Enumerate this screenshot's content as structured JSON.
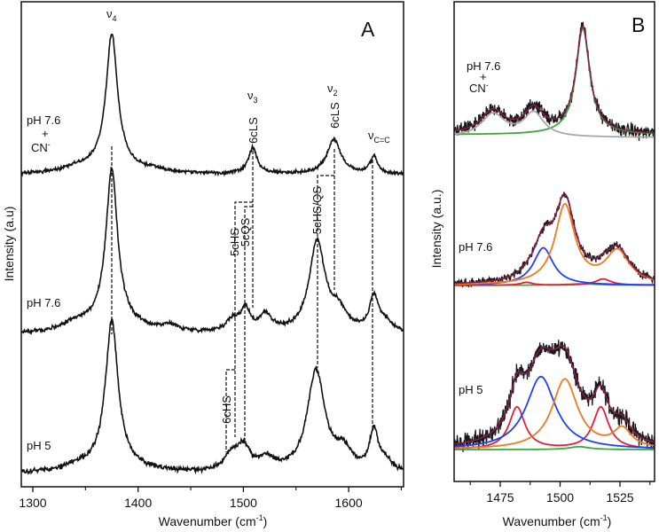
{
  "chart_data": [
    {
      "panel": "A",
      "type": "line",
      "xlabel": "Wavenumber (cm",
      "xlabel_sup": "-1",
      "xlabel_end": ")",
      "ylabel": "Intensity (a.u)",
      "xlim": [
        1289,
        1652
      ],
      "ylim": [
        0,
        100
      ],
      "xticks": [
        1300,
        1400,
        1500,
        1600
      ],
      "xticks_minor": [
        1350,
        1450,
        1550,
        1650
      ],
      "traces": [
        {
          "label": "pH 7.6",
          "label2": "+",
          "label3": "CN",
          "label3_sup": "-",
          "offset": 64.4,
          "noise": 0.35,
          "seed": 11,
          "peaks": [
            [
              1375,
              26.9,
              6.5
            ],
            [
              1375,
              2,
              25
            ],
            [
              1340,
              0.8,
              15
            ],
            [
              1415,
              0.6,
              10
            ],
            [
              1509,
              5.3,
              5
            ],
            [
              1586,
              7.1,
              8
            ],
            [
              1624,
              3.6,
              4
            ]
          ]
        },
        {
          "label": "pH 7.6",
          "offset": 31.4,
          "noise": 0.4,
          "seed": 22,
          "peaks": [
            [
              1375,
              31,
              6.5
            ],
            [
              1375,
              3,
              25
            ],
            [
              1340,
              1.5,
              15
            ],
            [
              1430,
              1.2,
              10
            ],
            [
              1490,
              2.5,
              8
            ],
            [
              1502,
              4.5,
              5
            ],
            [
              1521,
              3.5,
              7
            ],
            [
              1570,
              18.6,
              9
            ],
            [
              1590,
              4,
              10
            ],
            [
              1624,
              7,
              5
            ],
            [
              1635,
              2,
              8
            ]
          ]
        },
        {
          "label": "pH 5",
          "offset": 2.6,
          "noise": 0.5,
          "seed": 33,
          "peaks": [
            [
              1375,
              29,
              7
            ],
            [
              1375,
              2.5,
              25
            ],
            [
              1340,
              0.8,
              15
            ],
            [
              1488,
              3,
              8
            ],
            [
              1500,
              5,
              8
            ],
            [
              1522,
              2.5,
              8
            ],
            [
              1569,
              21,
              10
            ],
            [
              1595,
              4,
              10
            ],
            [
              1624,
              8,
              5
            ],
            [
              1635,
              2,
              8
            ]
          ]
        }
      ],
      "annotations": {
        "nu4": {
          "symbol": "ν",
          "sub": "4",
          "wavenumber": 1375
        },
        "nu3": {
          "symbol": "ν",
          "sub": "3",
          "wavenumber": 1509
        },
        "nu2": {
          "symbol": "ν",
          "sub": "2",
          "wavenumber": 1586
        },
        "nucc": {
          "symbol": "ν",
          "sub": "C=C",
          "wavenumber": 1624
        },
        "cls1": {
          "text": "6cLS",
          "wavenumber": 1509
        },
        "cls2": {
          "text": "6cLS",
          "wavenumber": 1586
        },
        "chs5": {
          "text": "5cHS",
          "wavenumber": 1493
        },
        "cqs5": {
          "text": "5cQS",
          "wavenumber": 1502
        },
        "chsqs": {
          "text": "5cHS/QS",
          "wavenumber": 1570
        },
        "chs6": {
          "text": "6cHS",
          "wavenumber": 1483
        }
      }
    },
    {
      "panel": "B",
      "type": "line",
      "xlabel": "Wavenumber (cm",
      "xlabel_sup": "-1",
      "xlabel_end": ")",
      "ylabel": "Intensity (a.u.)",
      "xlim": [
        1455.7,
        1539.4
      ],
      "ylim": [
        0,
        100
      ],
      "xticks": [
        1475,
        1500,
        1525
      ],
      "xticks_minor": [
        1462.5,
        1487.5,
        1512.5,
        1537.5
      ],
      "traces": [
        {
          "label": "pH 7.6",
          "label2": "+",
          "label3": "CN",
          "label3_sup": "-",
          "offset": 72.3,
          "noise": 1.0,
          "seed": 44,
          "components": [
            {
              "color": "#3aa83a",
              "offset": 72.3,
              "peaks": [
                [
                  1509.5,
                  22.2,
                  3.5
                ]
              ]
            },
            {
              "color": "#a8a8a8",
              "offset": 71.7,
              "peaks": [
                [
                  1472,
                  4.8,
                  6
                ],
                [
                  1489,
                  5,
                  5
                ]
              ]
            }
          ]
        },
        {
          "label": "pH 7.6",
          "offset": 40.9,
          "noise": 0.6,
          "seed": 55,
          "components": [
            {
              "color": "#3aa83a",
              "offset": 40.9,
              "peaks": [
                [
                  1509,
                  0.3,
                  8
                ]
              ]
            },
            {
              "color": "#e0203a",
              "offset": 40.9,
              "peaks": [
                [
                  1486,
                  0.6,
                  3
                ],
                [
                  1518,
                  1.3,
                  4
                ]
              ]
            },
            {
              "color": "#1f3fff",
              "offset": 40.9,
              "peaks": [
                [
                  1493,
                  7.8,
                  5
                ]
              ]
            },
            {
              "color": "#f07820",
              "offset": 40.9,
              "peaks": [
                [
                  1502,
                  16.5,
                  5
                ],
                [
                  1524,
                  6.8,
                  6
                ]
              ]
            }
          ]
        },
        {
          "label": "pH 5",
          "offset": 6.65,
          "noise": 1.3,
          "seed": 66,
          "components": [
            {
              "color": "#3aa83a",
              "offset": 6.65,
              "peaks": [
                [
                  1508,
                  0.6,
                  5
                ]
              ]
            },
            {
              "color": "#e0203a",
              "offset": 6.65,
              "peaks": [
                [
                  1482,
                  8.8,
                  4
                ],
                [
                  1517,
                  8.8,
                  4
                ]
              ]
            },
            {
              "color": "#1f3fff",
              "offset": 6.65,
              "peaks": [
                [
                  1492,
                  15.2,
                  7.5
                ]
              ]
            },
            {
              "color": "#f07820",
              "offset": 6.65,
              "peaks": [
                [
                  1502,
                  14.6,
                  6.5
                ],
                [
                  1526,
                  3.9,
                  4.5
                ]
              ]
            }
          ]
        }
      ],
      "colors": {
        "data": "#1a1a1a",
        "fit": "#8b1a4a"
      }
    }
  ],
  "panels": {
    "a_letter": "A",
    "b_letter": "B"
  }
}
